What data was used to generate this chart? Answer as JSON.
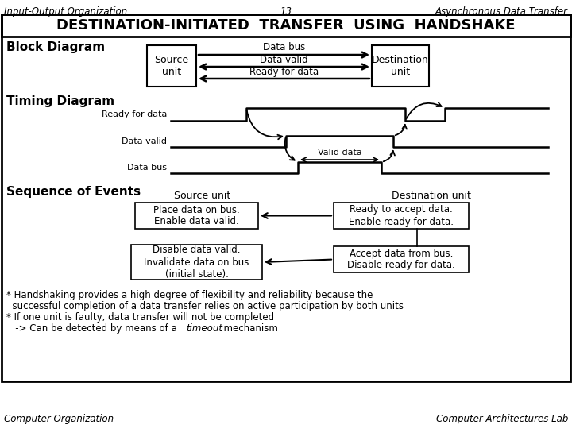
{
  "title_left": "Input-Output Organization",
  "title_center": "13",
  "title_right": "Asynchronous Data Transfer",
  "main_title": "DESTINATION-INITIATED  TRANSFER  USING  HANDSHAKE",
  "footer_left": "Computer Organization",
  "footer_right": "Computer Architectures Lab",
  "block_label": "Block Diagram",
  "timing_label": "Timing Diagram",
  "sequence_label": "Sequence of Events",
  "source_unit": "Source\nunit",
  "dest_unit": "Destination\nunit",
  "data_bus": "Data bus",
  "data_valid": "Data valid",
  "ready_for_data": "Ready for data",
  "seq_source": "Source unit",
  "seq_dest": "Destination unit",
  "seq_box1": "Place data on bus.\nEnable data valid.",
  "seq_box2": "Disable data valid.\nInvalidate data on bus\n(initial state).",
  "seq_box3": "Ready to accept data.\nEnable ready for data.",
  "seq_box4": "Accept data from bus.\nDisable ready for data.",
  "note1": "* Handshaking provides a high degree of flexibility and reliability because the",
  "note2": "  successful completion of a data transfer relies on active participation by both units",
  "note3": "* If one unit is faulty, data transfer will not be completed",
  "note4a": "   -> Can be detected by means of a ",
  "note4b": "timeout",
  "note4c": "  mechanism",
  "bg_color": "#ffffff"
}
